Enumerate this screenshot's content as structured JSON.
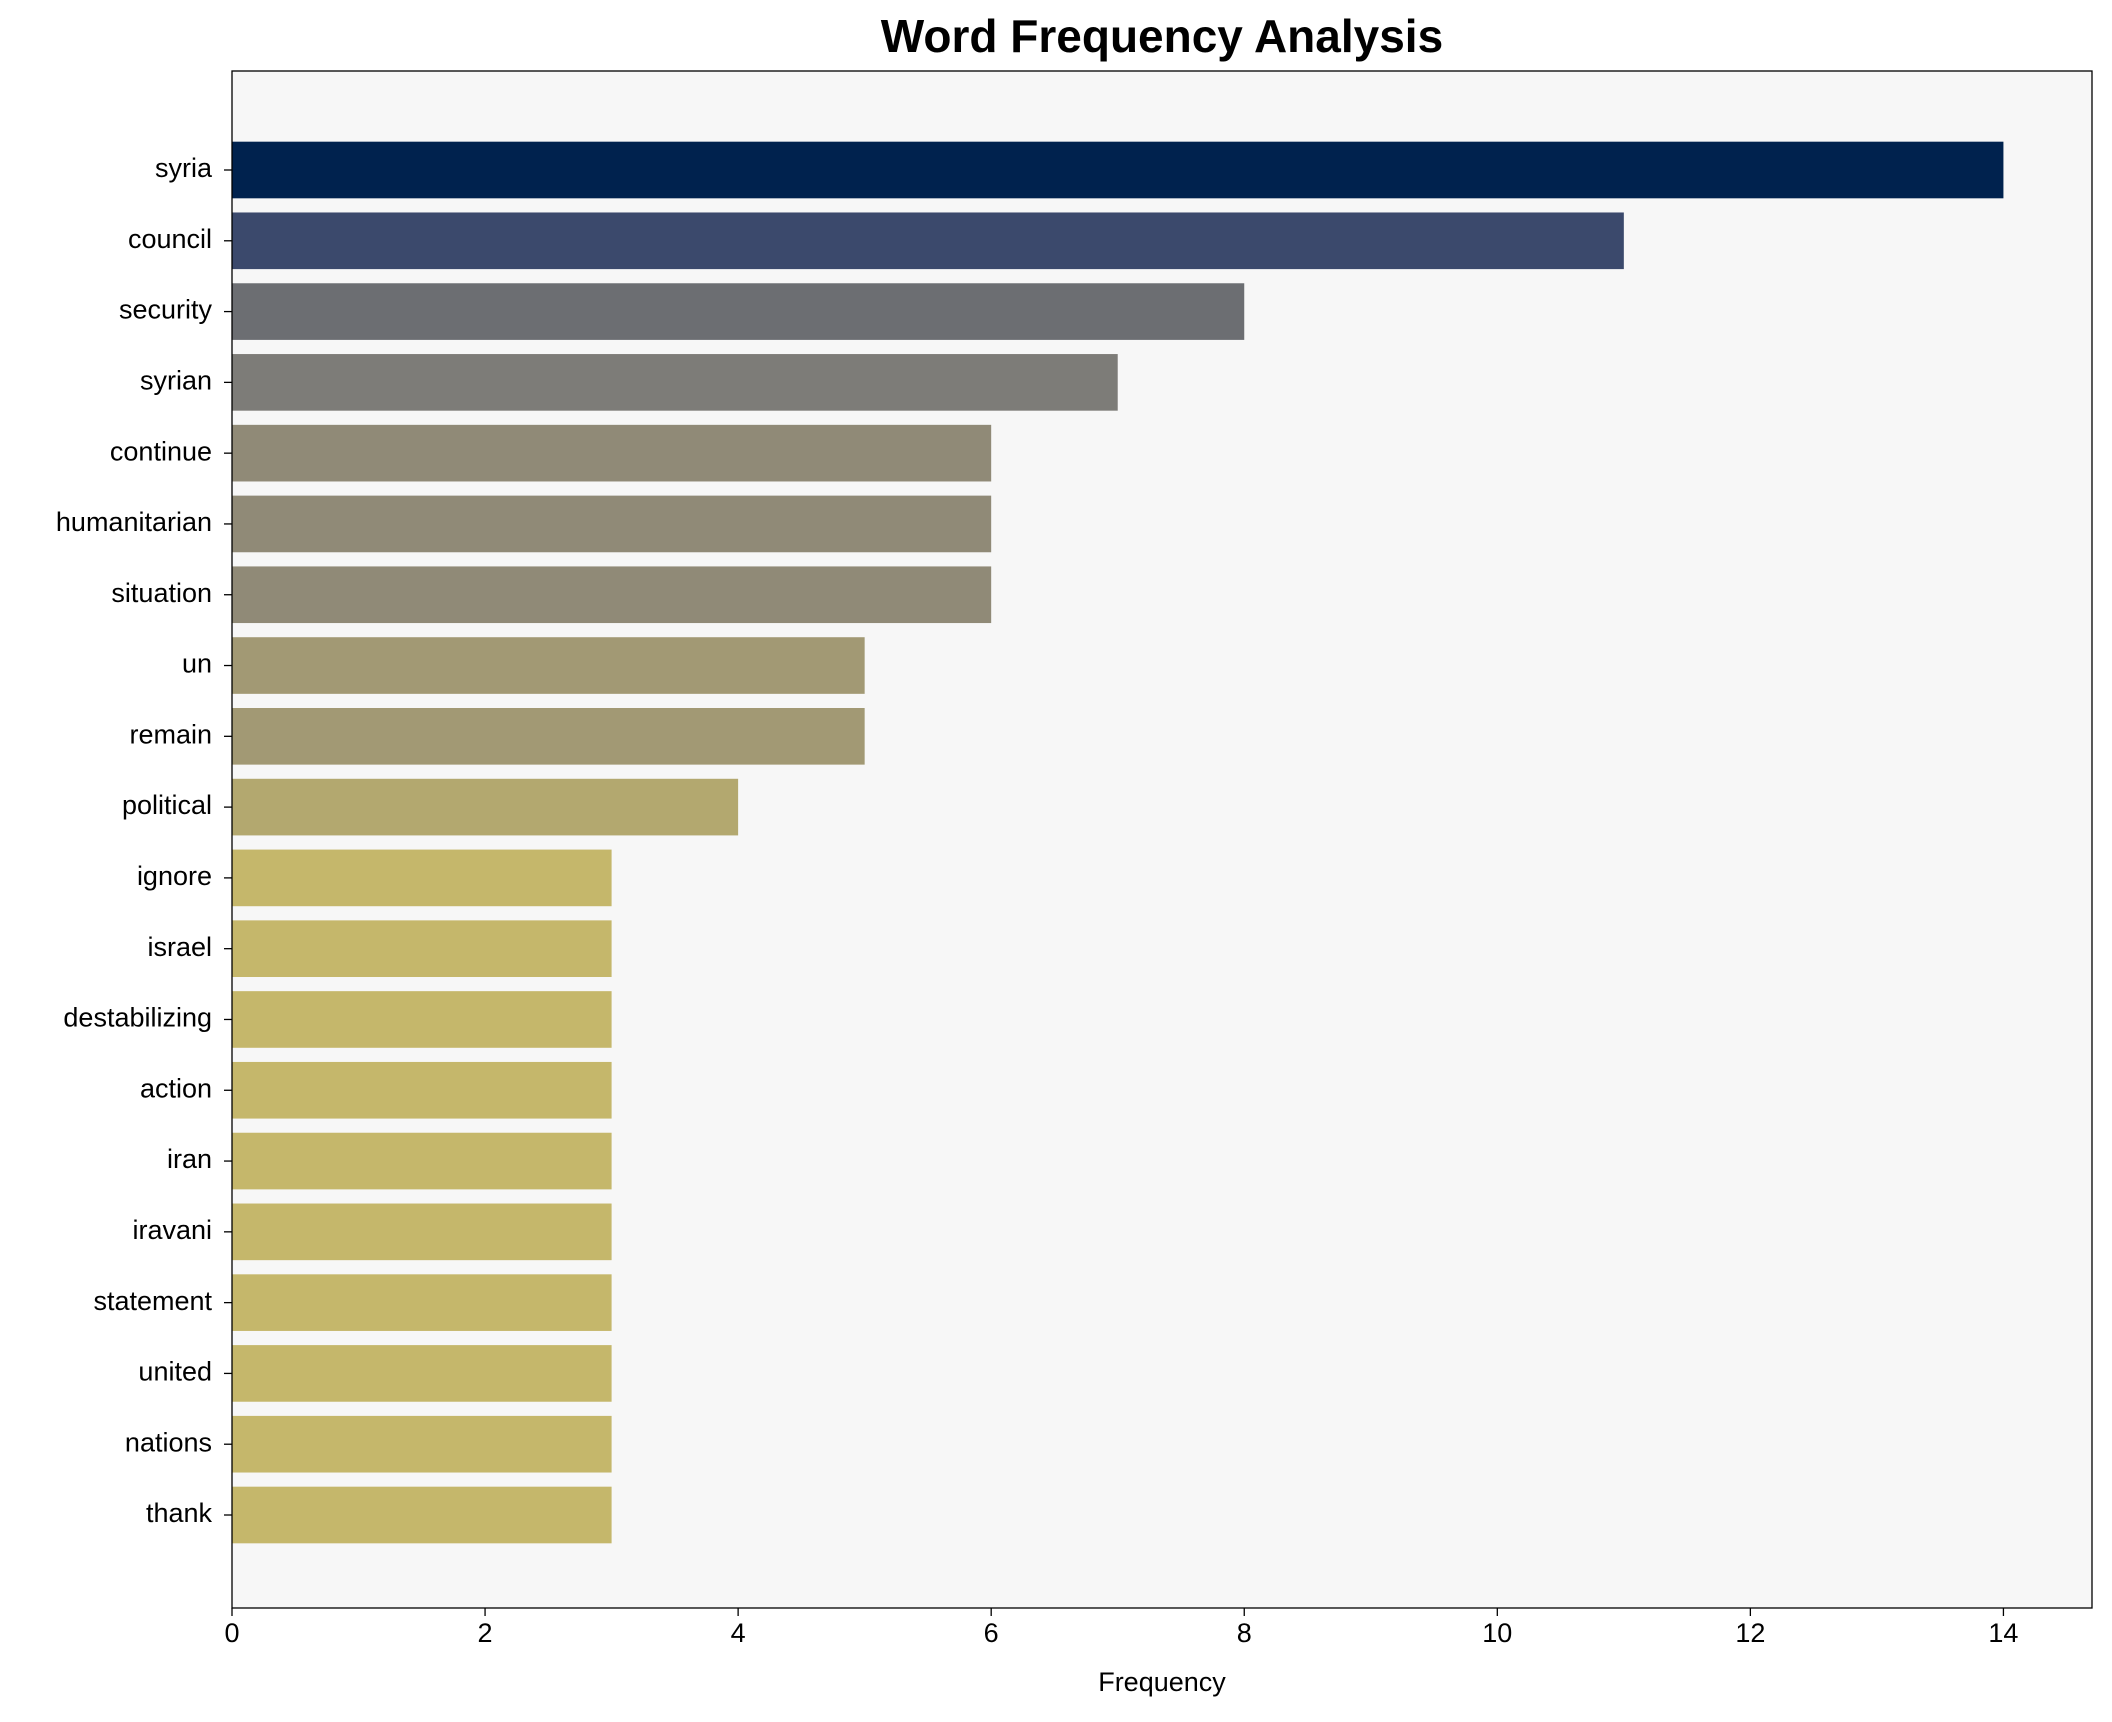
{
  "chart_data": {
    "type": "barh",
    "title": "Word Frequency Analysis",
    "xlabel": "Frequency",
    "categories": [
      "syria",
      "council",
      "security",
      "syrian",
      "continue",
      "humanitarian",
      "situation",
      "un",
      "remain",
      "political",
      "ignore",
      "israel",
      "destabilizing",
      "action",
      "iran",
      "iravani",
      "statement",
      "united",
      "nations",
      "thank"
    ],
    "values": [
      14,
      11,
      8,
      7,
      6,
      6,
      6,
      5,
      5,
      4,
      3,
      3,
      3,
      3,
      3,
      3,
      3,
      3,
      3,
      3
    ],
    "colors": [
      "#00224e",
      "#3b496c",
      "#6c6e72",
      "#7d7c78",
      "#908a77",
      "#908a77",
      "#908a77",
      "#a29974",
      "#a29974",
      "#b3a86f",
      "#c5b76b",
      "#c5b76b",
      "#c5b76b",
      "#c5b76b",
      "#c5b76b",
      "#c5b76b",
      "#c5b76b",
      "#c5b76b",
      "#c5b76b",
      "#c5b76b"
    ],
    "xlim": [
      0,
      14.7
    ],
    "xticks": [
      0,
      2,
      4,
      6,
      8,
      10,
      12,
      14
    ],
    "background": "#f7f7f7"
  }
}
